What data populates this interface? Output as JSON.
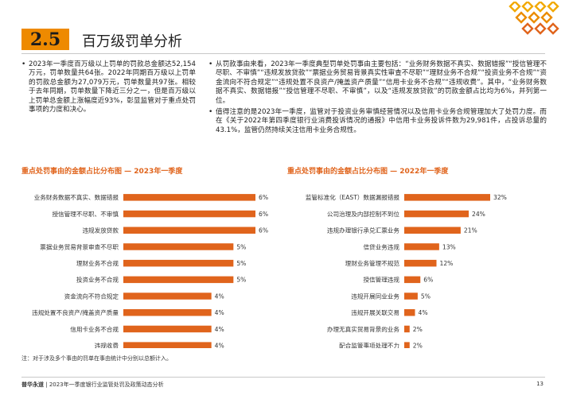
{
  "section": {
    "number": "2.5",
    "title": "百万级罚单分析"
  },
  "left_column": {
    "bullets": [
      "2023年一季度百万级以上罚单的罚款总金额达52,154万元，罚单数量共64张。2022年同期百万级以上罚单的罚款总金额为27,079万元，罚单数量共97张。相较于去年同期，罚单数量下降近三分之一，但是百万级以上罚单总金额上涨幅度近93%，彰显监管对于重点处罚事项的力度和决心。"
    ]
  },
  "right_column": {
    "bullets": [
      "从罚款事由来看，2023年一季度典型罚单处罚事由主要包括：“业务财务数据不真实、数据错报”“授信管理不尽职、不审慎”“违规发放贷款”“票据业务贸易背景真实性审查不尽职”“理财业务不合规”“投资业务不合规”“资金流向不符合规定”“违规处置不良资产/掩盖资产质量”“信用卡业务不合规”“违规收费”。其中，“业务财务数据不真实、数据错报”“授信管理不尽职、不审慎”，以及“违规发放贷款”的罚款金额占比均为6%，并列第一位。",
      "值得注意的是2023年一季度，监管对于投资业务审慎经营情况以及信用卡业务合规管理加大了处罚力度。而在《关于2022年第四季度银行业消费投诉情况的通报》中信用卡业务投诉件数为29,981件，占投诉总量的43.1%，监管仍然持续关注信用卡业务合规性。"
    ]
  },
  "chart_data": [
    {
      "type": "bar",
      "orientation": "horizontal",
      "title": "重点处罚事由的金额占比分布图 — 2023年一季度",
      "categories": [
        "业务财务数据不真实、数据错报",
        "授信管理不尽职、不审慎",
        "违规发放贷款",
        "票据业务贸易背景审查不尽职",
        "理财业务不合规",
        "投资业务不合规",
        "资金流向不符合规定",
        "违规处置不良资产/掩盖资产质量",
        "信用卡业务不合规",
        "违规收费"
      ],
      "values": [
        6,
        6,
        6,
        5,
        5,
        5,
        4,
        4,
        4,
        4
      ],
      "value_labels": [
        "6%",
        "6%",
        "6%",
        "5%",
        "5%",
        "5%",
        "4%",
        "4%",
        "4%",
        "4%"
      ],
      "xlim": [
        0,
        6
      ],
      "grid": false,
      "color": "#e0641c"
    },
    {
      "type": "bar",
      "orientation": "horizontal",
      "title": "重点处罚事由的金额占比分布图 — 2022年一季度",
      "categories": [
        "监管标准化（EAST）数据漏报错报",
        "公司治理及内部控制不到位",
        "违规办理银行承兑汇票业务",
        "信贷业务违规",
        "理财业务管理不规范",
        "授信管理违规",
        "违规开展同业业务",
        "违规开展关联交易",
        "办理无真实贸易背景的业务",
        "配合监管事项处理不力"
      ],
      "values": [
        32,
        24,
        21,
        13,
        12,
        6,
        5,
        4,
        2,
        2
      ],
      "value_labels": [
        "32%",
        "24%",
        "21%",
        "13%",
        "12%",
        "6%",
        "5%",
        "4%",
        "2%",
        "2%"
      ],
      "xlim": [
        0,
        32
      ],
      "grid": false,
      "color": "#e0641c"
    }
  ],
  "footnote": "注：对于涉及多个事由的罚单在事由统计中分别以总额计入。",
  "footer": {
    "brand": "普华永道",
    "text": "| 2023年一季度银行业监管处罚及政策动态分析",
    "page": "13"
  },
  "colors": {
    "accent": "#ee8a00",
    "bar": "#e0641c",
    "chart_title": "#e0641c"
  }
}
